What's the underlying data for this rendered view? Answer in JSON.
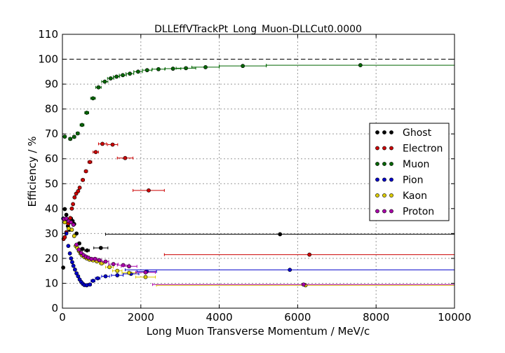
{
  "chart_data": {
    "type": "scatter",
    "title": "DLLEffVTrackPt_Long_Muon-DLLCut0.0000",
    "xlabel": "Long Muon Transverse Momentum / MeV/c",
    "ylabel": "Efficiency / %",
    "xlim": [
      0,
      10000
    ],
    "ylim": [
      0,
      110
    ],
    "xticks": [
      0,
      2000,
      4000,
      6000,
      8000,
      10000
    ],
    "yticks": [
      0,
      10,
      20,
      30,
      40,
      50,
      60,
      70,
      80,
      90,
      100,
      110
    ],
    "grid": true,
    "reference_line": 100,
    "legend_position": "right",
    "series": [
      {
        "name": "Ghost",
        "color": "#000000",
        "points": [
          [
            20,
            16.3,
            20
          ],
          [
            60,
            39.8,
            20
          ],
          [
            100,
            37.5,
            20
          ],
          [
            140,
            33,
            20
          ],
          [
            180,
            31.5,
            20
          ],
          [
            220,
            36,
            20
          ],
          [
            260,
            35,
            20
          ],
          [
            300,
            33.8,
            20
          ],
          [
            360,
            30,
            30
          ],
          [
            430,
            26,
            35
          ],
          [
            510,
            23.8,
            40
          ],
          [
            630,
            23.2,
            60
          ],
          [
            980,
            24.2,
            180
          ],
          [
            5550,
            29.7,
            4450
          ]
        ]
      },
      {
        "name": "Electron",
        "color": "#cc0000",
        "points": [
          [
            30,
            27.8,
            15
          ],
          [
            60,
            28.5,
            15
          ],
          [
            100,
            30.5,
            20
          ],
          [
            150,
            34,
            20
          ],
          [
            200,
            36.2,
            20
          ],
          [
            240,
            40,
            20
          ],
          [
            270,
            41.8,
            15
          ],
          [
            310,
            44.5,
            20
          ],
          [
            350,
            46,
            20
          ],
          [
            400,
            47,
            25
          ],
          [
            440,
            48.4,
            25
          ],
          [
            520,
            51.5,
            40
          ],
          [
            600,
            55,
            40
          ],
          [
            700,
            58.7,
            50
          ],
          [
            850,
            62.7,
            70
          ],
          [
            1020,
            66,
            100
          ],
          [
            1280,
            65.7,
            130
          ],
          [
            1600,
            60.3,
            200
          ],
          [
            2200,
            47.3,
            400
          ],
          [
            6300,
            21.5,
            3700
          ]
        ]
      },
      {
        "name": "Muon",
        "color": "#006600",
        "points": [
          [
            60,
            68.9,
            30
          ],
          [
            200,
            68,
            40
          ],
          [
            300,
            68.8,
            40
          ],
          [
            390,
            70.2,
            40
          ],
          [
            500,
            73.6,
            50
          ],
          [
            620,
            78.5,
            50
          ],
          [
            780,
            84.3,
            60
          ],
          [
            920,
            88.7,
            70
          ],
          [
            1080,
            91,
            80
          ],
          [
            1230,
            92.3,
            80
          ],
          [
            1380,
            93,
            80
          ],
          [
            1540,
            93.6,
            90
          ],
          [
            1720,
            94.2,
            100
          ],
          [
            1930,
            95,
            110
          ],
          [
            2160,
            95.6,
            120
          ],
          [
            2450,
            96,
            160
          ],
          [
            2820,
            96.2,
            200
          ],
          [
            3150,
            96.4,
            250
          ],
          [
            3650,
            96.8,
            350
          ],
          [
            4600,
            97.3,
            600
          ],
          [
            7600,
            97.6,
            2400
          ]
        ]
      },
      {
        "name": "Pion",
        "color": "#0000cc",
        "points": [
          [
            20,
            36,
            15
          ],
          [
            60,
            35.5,
            15
          ],
          [
            100,
            30,
            20
          ],
          [
            150,
            25,
            20
          ],
          [
            190,
            22,
            20
          ],
          [
            220,
            20,
            15
          ],
          [
            250,
            18.5,
            15
          ],
          [
            280,
            17,
            15
          ],
          [
            320,
            15.5,
            20
          ],
          [
            360,
            14,
            20
          ],
          [
            400,
            12.8,
            20
          ],
          [
            440,
            11.5,
            20
          ],
          [
            480,
            10.5,
            20
          ],
          [
            520,
            9.8,
            20
          ],
          [
            560,
            9.3,
            20
          ],
          [
            620,
            9.2,
            30
          ],
          [
            700,
            9.5,
            40
          ],
          [
            780,
            11,
            50
          ],
          [
            900,
            12,
            60
          ],
          [
            1100,
            12.8,
            100
          ],
          [
            1400,
            13.2,
            150
          ],
          [
            1750,
            13.8,
            200
          ],
          [
            2150,
            14.7,
            250
          ],
          [
            5800,
            15.4,
            4200
          ]
        ]
      },
      {
        "name": "Kaon",
        "color": "#ddcc00",
        "points": [
          [
            60,
            34.5,
            30
          ],
          [
            160,
            32,
            30
          ],
          [
            240,
            31.5,
            30
          ],
          [
            300,
            29,
            25
          ],
          [
            340,
            25,
            25
          ],
          [
            380,
            24.2,
            25
          ],
          [
            420,
            23,
            25
          ],
          [
            460,
            22,
            25
          ],
          [
            500,
            21.2,
            30
          ],
          [
            560,
            20.5,
            30
          ],
          [
            620,
            20,
            30
          ],
          [
            690,
            19.5,
            40
          ],
          [
            780,
            19.2,
            50
          ],
          [
            880,
            18.8,
            50
          ],
          [
            1000,
            18,
            60
          ],
          [
            1200,
            16.5,
            100
          ],
          [
            1400,
            15,
            120
          ],
          [
            1700,
            14.2,
            180
          ],
          [
            2120,
            12.5,
            250
          ],
          [
            6200,
            9.2,
            3800
          ]
        ]
      },
      {
        "name": "Proton",
        "color": "#aa00aa",
        "points": [
          [
            40,
            35.8,
            20
          ],
          [
            100,
            36,
            20
          ],
          [
            160,
            35,
            20
          ],
          [
            220,
            34.5,
            20
          ],
          [
            280,
            33.5,
            20
          ],
          [
            360,
            25.5,
            25
          ],
          [
            420,
            23.5,
            25
          ],
          [
            480,
            22.2,
            25
          ],
          [
            540,
            21.3,
            25
          ],
          [
            600,
            20.7,
            30
          ],
          [
            660,
            20.3,
            30
          ],
          [
            740,
            19.8,
            40
          ],
          [
            830,
            19.8,
            50
          ],
          [
            940,
            19.3,
            60
          ],
          [
            1100,
            18.7,
            80
          ],
          [
            1300,
            17.7,
            120
          ],
          [
            1550,
            17.3,
            150
          ],
          [
            1700,
            16.8,
            200
          ],
          [
            2120,
            14.4,
            250
          ],
          [
            6150,
            9.5,
            3850
          ]
        ]
      }
    ]
  }
}
